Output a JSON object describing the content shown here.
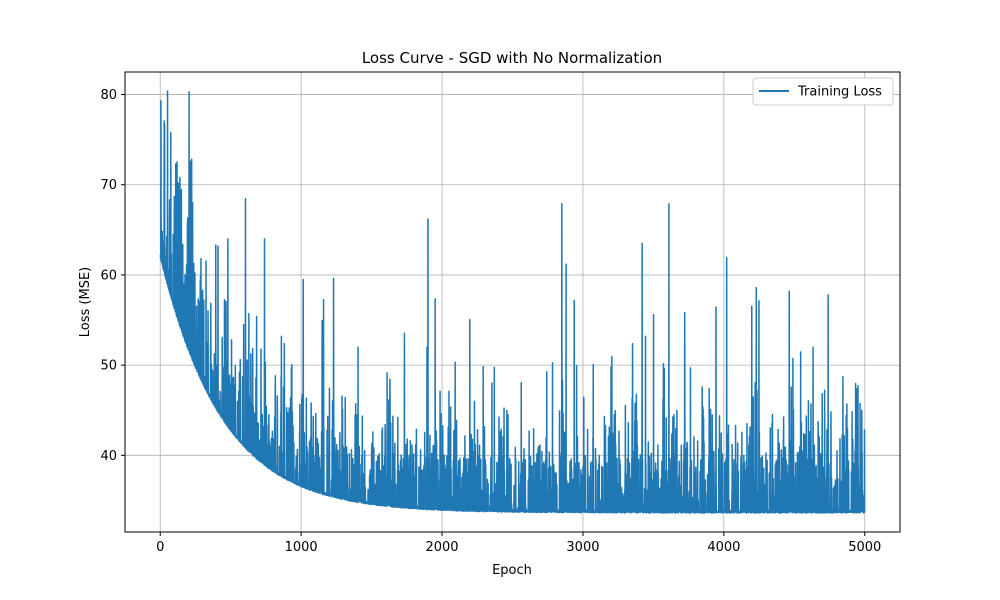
{
  "chart_data": {
    "type": "line",
    "title": "Loss Curve - SGD with No Normalization",
    "xlabel": "Epoch",
    "ylabel": "Loss (MSE)",
    "xlim": [
      -250,
      5250
    ],
    "ylim": [
      31.5,
      82.5
    ],
    "xticks": [
      0,
      1000,
      2000,
      3000,
      4000,
      5000
    ],
    "yticks": [
      40,
      50,
      60,
      70,
      80
    ],
    "grid": true,
    "legend_position": "top-right",
    "series": [
      {
        "name": "Training Loss",
        "color": "#1f77b4",
        "approximation": {
          "epochs": 5000,
          "baseline_start": 62,
          "baseline_floor": 33.6,
          "decay_epochs": 440
        },
        "notable_spikes": [
          {
            "x": 5,
            "y": 79.3
          },
          {
            "x": 75,
            "y": 75.8
          },
          {
            "x": 110,
            "y": 72.3
          },
          {
            "x": 140,
            "y": 70.8
          },
          {
            "x": 205,
            "y": 80.3
          },
          {
            "x": 230,
            "y": 68.0
          },
          {
            "x": 410,
            "y": 63.2
          },
          {
            "x": 480,
            "y": 64.0
          },
          {
            "x": 740,
            "y": 64.0
          },
          {
            "x": 1015,
            "y": 59.5
          },
          {
            "x": 1230,
            "y": 59.6
          },
          {
            "x": 1900,
            "y": 66.2
          },
          {
            "x": 2850,
            "y": 67.9
          },
          {
            "x": 2880,
            "y": 61.2
          },
          {
            "x": 3420,
            "y": 63.5
          },
          {
            "x": 3610,
            "y": 67.9
          },
          {
            "x": 4020,
            "y": 61.9
          },
          {
            "x": 4230,
            "y": 58.6
          },
          {
            "x": 4740,
            "y": 57.8
          }
        ]
      }
    ]
  }
}
